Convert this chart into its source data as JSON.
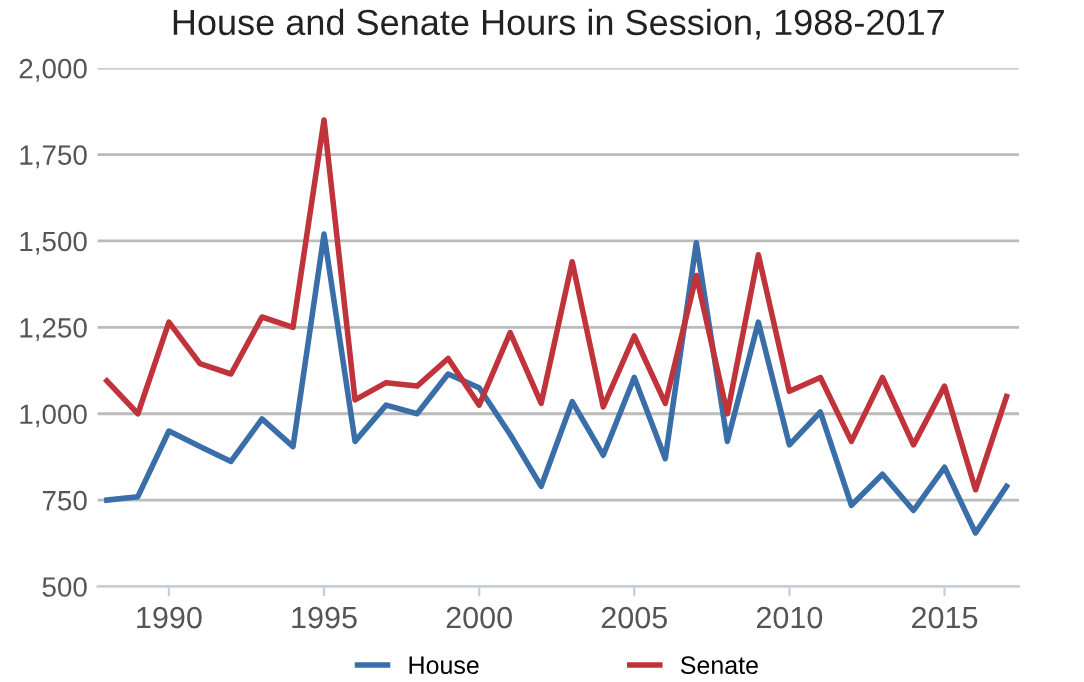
{
  "chart_data": {
    "type": "line",
    "title": "House and Senate Hours in Session, 1988-2017",
    "x": [
      1988,
      1989,
      1990,
      1991,
      1992,
      1993,
      1994,
      1995,
      1996,
      1997,
      1998,
      1999,
      2000,
      2001,
      2002,
      2003,
      2004,
      2005,
      2006,
      2007,
      2008,
      2009,
      2010,
      2011,
      2012,
      2013,
      2014,
      2015,
      2016,
      2017
    ],
    "series": [
      {
        "name": "House",
        "color": "#3a6ea8",
        "values": [
          750,
          760,
          950,
          905,
          862,
          985,
          905,
          1520,
          920,
          1025,
          1000,
          1115,
          1075,
          940,
          790,
          1035,
          880,
          1105,
          870,
          1495,
          920,
          1265,
          910,
          1005,
          735,
          825,
          720,
          845,
          655,
          790
        ]
      },
      {
        "name": "Senate",
        "color": "#c0333b",
        "values": [
          1095,
          1000,
          1265,
          1145,
          1115,
          1280,
          1250,
          1850,
          1040,
          1090,
          1080,
          1160,
          1025,
          1235,
          1030,
          1440,
          1020,
          1225,
          1030,
          1400,
          1000,
          1460,
          1065,
          1105,
          920,
          1105,
          910,
          1080,
          780,
          1050
        ]
      }
    ],
    "xlim": [
      1987.7,
      2017.4
    ],
    "xticks": [
      1990,
      1995,
      2000,
      2005,
      2010,
      2015
    ],
    "ylim": [
      500,
      2000
    ],
    "yticks": [
      {
        "value": 500,
        "label": "500"
      },
      {
        "value": 750,
        "label": "750"
      },
      {
        "value": 1000,
        "label": "1,000"
      },
      {
        "value": 1250,
        "label": "1,250"
      },
      {
        "value": 1500,
        "label": "1,500"
      },
      {
        "value": 1750,
        "label": "1,750"
      },
      {
        "value": 2000,
        "label": "2,000"
      }
    ],
    "grid": "y",
    "legend": "bottom",
    "marker": "none",
    "line_style": "solid"
  }
}
